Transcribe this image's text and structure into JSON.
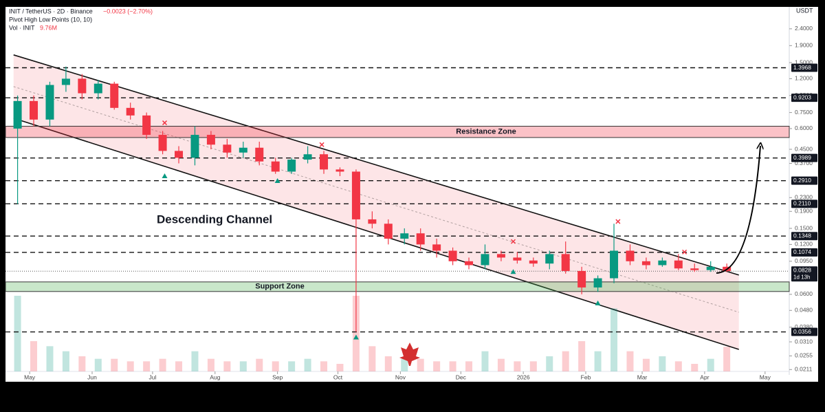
{
  "chart_data": {
    "type": "candlestick",
    "title": "INIT / TetherUS · 2D · Binance",
    "change_label": "−0.0023 (−2.70%)",
    "indicator": "Pivot High Low Points (10, 10)",
    "volume_name": "Vol · INIT",
    "volume_last_label": "9.76M",
    "currency": "USDT",
    "log_scale": true,
    "up_color": "#089981",
    "down_color": "#f23645",
    "xlim": [
      -12,
      377
    ],
    "xticks": [
      {
        "value": 0,
        "label": "May"
      },
      {
        "value": 31,
        "label": "Jun"
      },
      {
        "value": 61,
        "label": "Jul"
      },
      {
        "value": 92,
        "label": "Aug"
      },
      {
        "value": 123,
        "label": "Sep"
      },
      {
        "value": 153,
        "label": "Oct"
      },
      {
        "value": 184,
        "label": "Nov"
      },
      {
        "value": 214,
        "label": "Dec"
      },
      {
        "value": 245,
        "label": "2026"
      },
      {
        "value": 276,
        "label": "Feb"
      },
      {
        "value": 304,
        "label": "Mar"
      },
      {
        "value": 335,
        "label": "Apr"
      },
      {
        "value": 365,
        "label": "May"
      }
    ],
    "ylim": [
      0.0196,
      2.74
    ],
    "yticks": [
      {
        "value": 2.4,
        "label": "2.4000"
      },
      {
        "value": 1.9,
        "label": "1.9000"
      },
      {
        "value": 1.5,
        "label": "1.5000"
      },
      {
        "value": 1.2,
        "label": "1.2000"
      },
      {
        "value": 0.95,
        "label": "0.9500"
      },
      {
        "value": 0.75,
        "label": "0.7500"
      },
      {
        "value": 0.6,
        "label": "0.6000"
      },
      {
        "value": 0.45,
        "label": "0.4500"
      },
      {
        "value": 0.37,
        "label": "0.3700"
      },
      {
        "value": 0.23,
        "label": "0.2300"
      },
      {
        "value": 0.19,
        "label": "0.1900"
      },
      {
        "value": 0.15,
        "label": "0.1500"
      },
      {
        "value": 0.12,
        "label": "0.1200"
      },
      {
        "value": 0.095,
        "label": "0.0950"
      },
      {
        "value": 0.06,
        "label": "0.0600"
      },
      {
        "value": 0.048,
        "label": "0.0480"
      },
      {
        "value": 0.038,
        "label": "0.0380"
      },
      {
        "value": 0.031,
        "label": "0.0310"
      },
      {
        "value": 0.0255,
        "label": "0.0255"
      },
      {
        "value": 0.0211,
        "label": "0.0211"
      }
    ],
    "levels": [
      1.3968,
      0.9203,
      0.3989,
      {
        "value": 0.291,
        "label": "0.2910"
      },
      {
        "value": 0.211,
        "label": "0.2110"
      },
      0.1348,
      0.1074,
      0.0356
    ],
    "last_price": 0.0828,
    "countdown": "1d 13h",
    "zones": [
      {
        "name": "Resistance Zone",
        "range": [
          0.53,
          0.62
        ],
        "color": "#f23645"
      },
      {
        "name": "Support Zone",
        "range": [
          0.0624,
          0.0713
        ],
        "color": "#4caf50"
      }
    ],
    "channel": {
      "name": "Descending Channel",
      "x": [
        -8,
        352
      ],
      "upper": [
        1.67,
        0.0784
      ],
      "lower": [
        0.693,
        0.0279
      ],
      "color": "#f23645"
    },
    "pivot_highs": {
      "x": [
        67,
        145,
        240,
        292,
        325
      ],
      "values": [
        0.65,
        0.48,
        0.125,
        0.165,
        0.108
      ]
    },
    "pivot_lows": {
      "x": [
        67,
        123,
        162,
        240,
        282
      ],
      "values": [
        0.31,
        0.29,
        0.033,
        0.082,
        0.053
      ]
    },
    "x": [
      -6,
      2,
      10,
      18,
      26,
      34,
      42,
      50,
      58,
      66,
      74,
      82,
      90,
      98,
      106,
      114,
      122,
      130,
      138,
      146,
      154,
      162,
      170,
      178,
      186,
      194,
      202,
      210,
      218,
      226,
      234,
      242,
      250,
      258,
      266,
      274,
      282,
      290,
      298,
      306,
      314,
      322,
      330,
      338,
      346
    ],
    "open": [
      0.6,
      0.88,
      0.68,
      1.1,
      1.2,
      0.98,
      1.12,
      0.8,
      0.72,
      0.55,
      0.44,
      0.4,
      0.55,
      0.48,
      0.43,
      0.46,
      0.38,
      0.33,
      0.39,
      0.42,
      0.34,
      0.33,
      0.17,
      0.16,
      0.13,
      0.14,
      0.12,
      0.11,
      0.095,
      0.09,
      0.105,
      0.1,
      0.096,
      0.092,
      0.105,
      0.083,
      0.066,
      0.075,
      0.11,
      0.095,
      0.09,
      0.096,
      0.086,
      0.084,
      0.088
    ],
    "high": [
      0.95,
      0.95,
      1.15,
      1.42,
      1.28,
      1.18,
      1.15,
      0.86,
      0.75,
      0.58,
      0.47,
      0.62,
      0.58,
      0.52,
      0.5,
      0.5,
      0.4,
      0.4,
      0.47,
      0.44,
      0.35,
      0.34,
      0.19,
      0.17,
      0.15,
      0.15,
      0.13,
      0.115,
      0.1,
      0.12,
      0.11,
      0.108,
      0.1,
      0.11,
      0.125,
      0.088,
      0.078,
      0.16,
      0.12,
      0.1,
      0.1,
      0.105,
      0.092,
      0.095,
      0.092
    ],
    "low": [
      0.21,
      0.62,
      0.62,
      1.0,
      0.9,
      0.9,
      0.78,
      0.68,
      0.52,
      0.42,
      0.37,
      0.36,
      0.45,
      0.4,
      0.4,
      0.36,
      0.32,
      0.32,
      0.37,
      0.32,
      0.31,
      0.0356,
      0.15,
      0.12,
      0.12,
      0.11,
      0.1,
      0.09,
      0.085,
      0.085,
      0.095,
      0.092,
      0.088,
      0.085,
      0.08,
      0.06,
      0.062,
      0.07,
      0.09,
      0.085,
      0.088,
      0.084,
      0.082,
      0.082,
      0.082
    ],
    "close": [
      0.88,
      0.68,
      1.1,
      1.2,
      0.98,
      1.12,
      0.8,
      0.72,
      0.55,
      0.44,
      0.4,
      0.55,
      0.48,
      0.43,
      0.46,
      0.38,
      0.33,
      0.39,
      0.42,
      0.34,
      0.33,
      0.17,
      0.16,
      0.13,
      0.14,
      0.12,
      0.11,
      0.095,
      0.09,
      0.105,
      0.1,
      0.096,
      0.092,
      0.105,
      0.083,
      0.066,
      0.075,
      0.11,
      0.095,
      0.09,
      0.096,
      0.086,
      0.084,
      0.088,
      0.0828
    ],
    "volume": [
      30,
      12,
      10,
      8,
      6,
      5,
      5,
      4,
      4,
      5,
      4,
      8,
      5,
      4,
      4,
      5,
      4,
      4,
      5,
      4,
      3,
      30,
      10,
      6,
      5,
      5,
      4,
      4,
      4,
      8,
      5,
      4,
      4,
      6,
      8,
      12,
      8,
      25,
      8,
      5,
      6,
      4,
      3,
      5,
      9.76
    ]
  }
}
